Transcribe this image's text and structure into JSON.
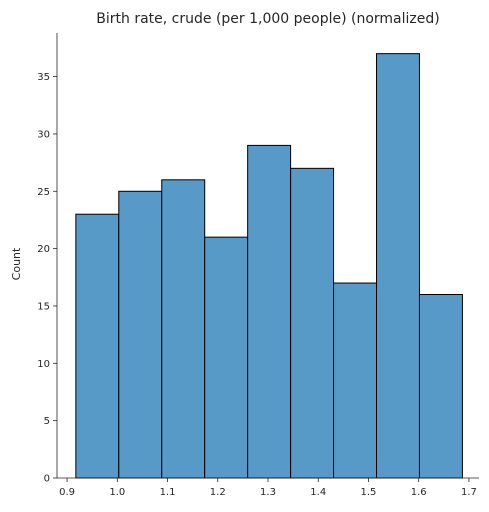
{
  "chart_data": {
    "type": "bar",
    "title": "Birth rate, crude (per 1,000 people) (normalized)",
    "xlabel": "",
    "ylabel": "Count",
    "bin_edges": [
      0.9175,
      1.003,
      1.0885,
      1.174,
      1.2595,
      1.345,
      1.4305,
      1.516,
      1.6015,
      1.687
    ],
    "values": [
      23,
      25,
      26,
      21,
      29,
      27,
      17,
      37,
      16
    ],
    "xlim": [
      0.88,
      1.72
    ],
    "ylim": [
      0,
      38.8
    ],
    "x_ticks": [
      0.9,
      1.0,
      1.1,
      1.2,
      1.3,
      1.4,
      1.5,
      1.6,
      1.7
    ],
    "x_tick_labels": [
      "0.9",
      "1.0",
      "1.1",
      "1.2",
      "1.3",
      "1.4",
      "1.5",
      "1.6",
      "1.7"
    ],
    "y_ticks": [
      0,
      5,
      10,
      15,
      20,
      25,
      30,
      35
    ],
    "y_tick_labels": [
      "0",
      "5",
      "10",
      "15",
      "20",
      "25",
      "30",
      "35"
    ],
    "grid": false,
    "bar_color": "#5799c7",
    "edge_color": "#000000"
  }
}
